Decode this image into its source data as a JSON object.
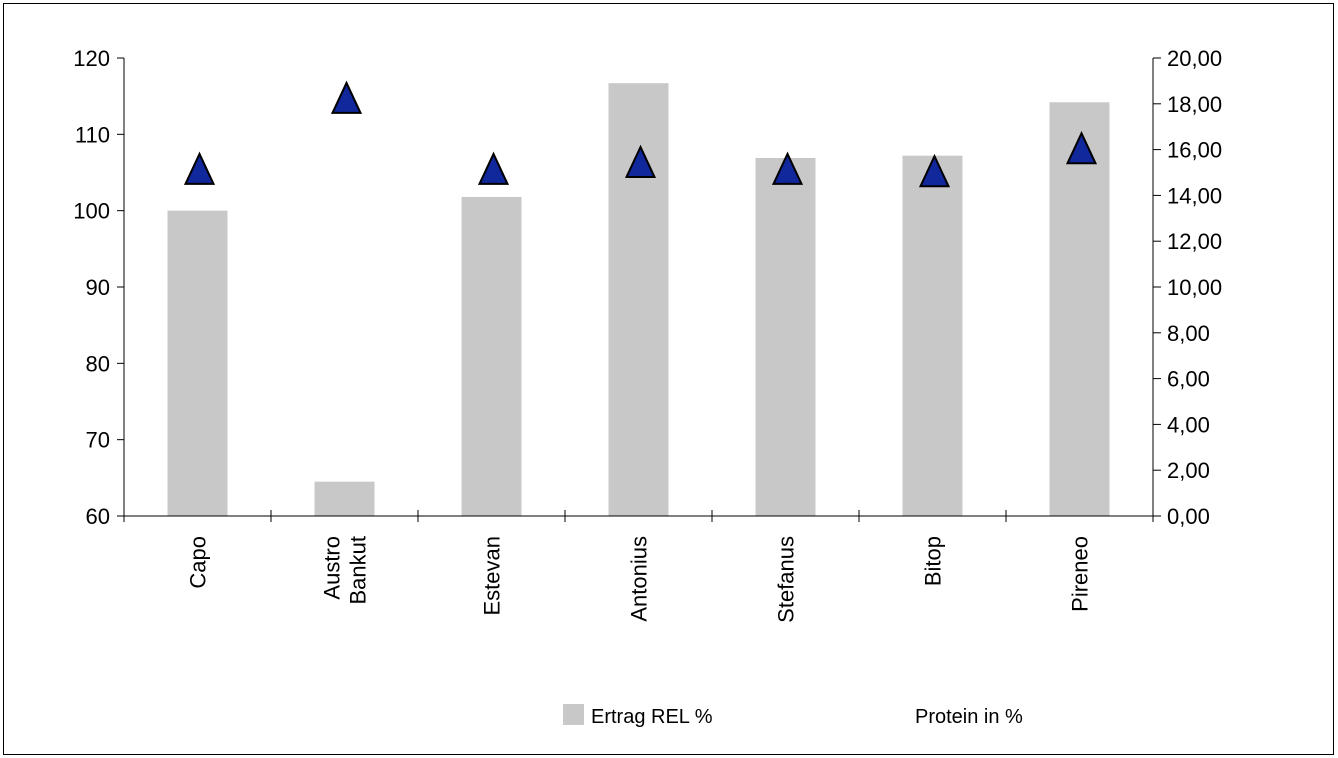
{
  "chart_data": {
    "type": "bar",
    "categories": [
      [
        "Capo"
      ],
      [
        "Austro",
        "Bankut"
      ],
      [
        "Estevan"
      ],
      [
        "Antonius"
      ],
      [
        "Stefanus"
      ],
      [
        "Bitop"
      ],
      [
        "Pireneo"
      ]
    ],
    "series": [
      {
        "name": "Ertrag REL %",
        "type": "bar",
        "axis": "left",
        "color": "#c8c8c8",
        "values": [
          100,
          64.5,
          101.8,
          116.7,
          106.9,
          107.2,
          114.2
        ]
      },
      {
        "name": "Protein in %",
        "type": "scatter",
        "marker": "triangle",
        "axis": "right",
        "color": "#10289c",
        "values": [
          15.0,
          18.1,
          15.0,
          15.3,
          15.0,
          14.9,
          15.9
        ]
      }
    ],
    "y_left": {
      "ylim": [
        60,
        120
      ],
      "ticks": [
        "60",
        "70",
        "80",
        "90",
        "100",
        "110",
        "120"
      ]
    },
    "y_right": {
      "ylim": [
        0,
        20
      ],
      "ticks": [
        "0,00",
        "2,00",
        "4,00",
        "6,00",
        "8,00",
        "10,00",
        "12,00",
        "14,00",
        "16,00",
        "18,00",
        "20,00"
      ]
    },
    "title": "",
    "xlabel": "",
    "ylabel": "",
    "grid": false,
    "legend": {
      "position": "bottom",
      "items": [
        {
          "label": "Ertrag REL %",
          "swatch": "bar"
        },
        {
          "label": "Protein in %",
          "swatch": "none"
        }
      ]
    }
  }
}
